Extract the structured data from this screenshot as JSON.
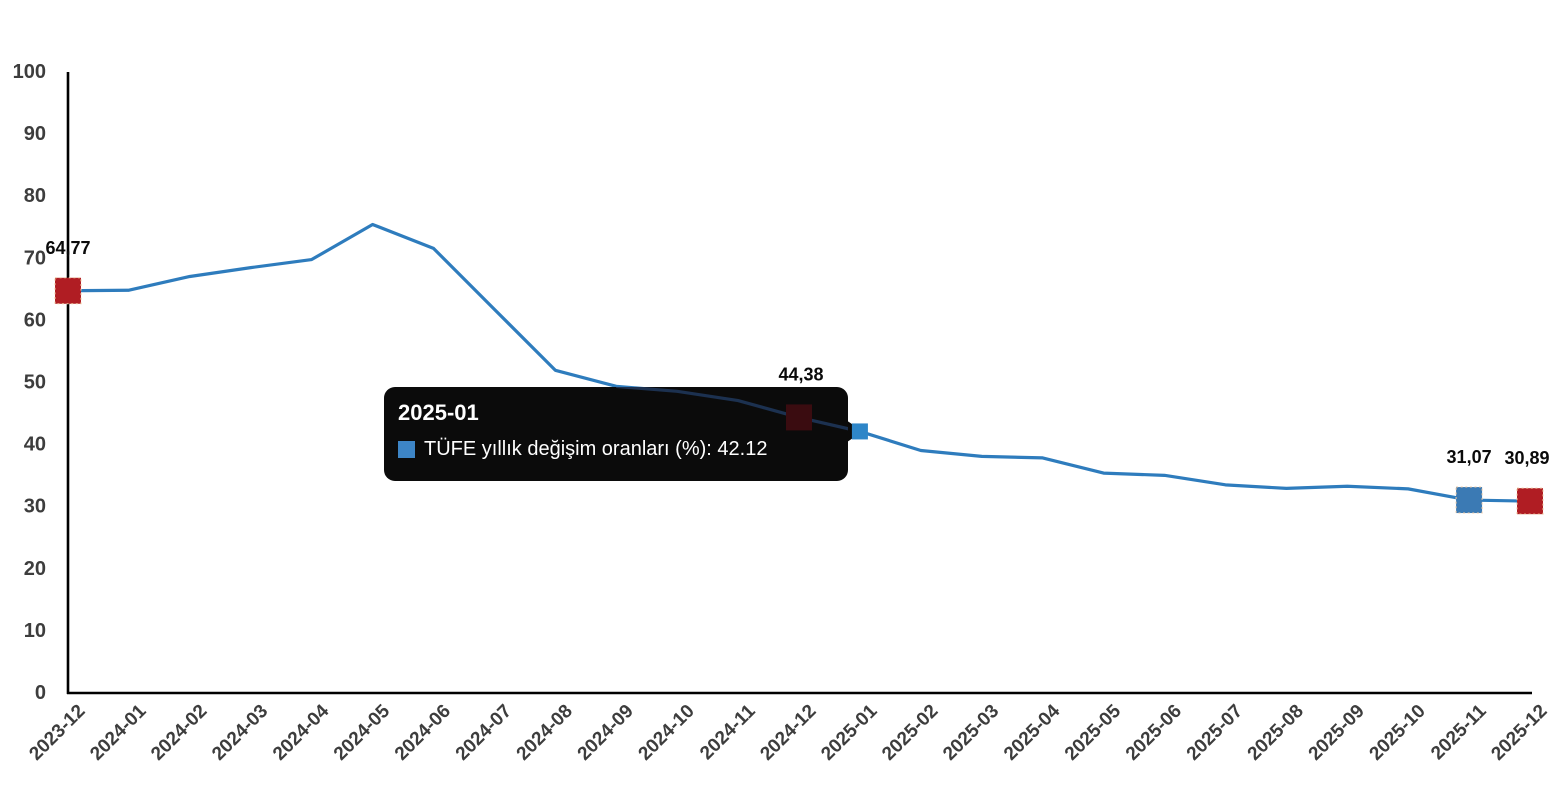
{
  "chart_data": {
    "type": "line",
    "title": "",
    "x": [
      "2023-12",
      "2024-01",
      "2024-02",
      "2024-03",
      "2024-04",
      "2024-05",
      "2024-06",
      "2024-07",
      "2024-08",
      "2024-09",
      "2024-10",
      "2024-11",
      "2024-12",
      "2025-01",
      "2025-02",
      "2025-03",
      "2025-04",
      "2025-05",
      "2025-06",
      "2025-07",
      "2025-08",
      "2025-09",
      "2025-10",
      "2025-11",
      "2025-12"
    ],
    "series": [
      {
        "name": "TÜFE yıllık değişim oranları (%)",
        "values": [
          64.77,
          64.86,
          67.07,
          68.5,
          69.8,
          75.45,
          71.6,
          61.78,
          51.97,
          49.38,
          48.58,
          47.09,
          44.38,
          42.12,
          39.05,
          38.1,
          37.86,
          35.41,
          35.05,
          33.52,
          32.95,
          33.29,
          32.87,
          31.07,
          30.89
        ]
      }
    ],
    "xlabel": "",
    "ylabel": "",
    "ylim": [
      0,
      100
    ],
    "y_ticks": [
      "0",
      "10",
      "20",
      "30",
      "40",
      "50",
      "60",
      "70",
      "80",
      "90",
      "100"
    ],
    "grid": false,
    "legend_position": "none",
    "line_color": "#2e7cbd",
    "axis_color": "#000000",
    "tick_label_color": "#3d3d3d"
  },
  "highlight_markers": [
    {
      "month": "2023-12",
      "value": 64.77,
      "label": "64,77",
      "color": "#b01d23",
      "size": 26,
      "hover": false,
      "label_dx": 0
    },
    {
      "month": "2024-12",
      "value": 44.38,
      "label": "44,38",
      "color": "#b01d23",
      "size": 26,
      "hover": false,
      "label_dx": 2
    },
    {
      "month": "2025-01",
      "value": 42.12,
      "label": "",
      "color": "#2e86c8",
      "size": 16,
      "hover": true,
      "label_dx": 0
    },
    {
      "month": "2025-11",
      "value": 31.07,
      "label": "31,07",
      "color": "#3b7ab4",
      "size": 26,
      "hover": false,
      "label_dx": 0
    },
    {
      "month": "2025-12",
      "value": 30.89,
      "label": "30,89",
      "color": "#b01d23",
      "size": 26,
      "hover": false,
      "label_dx": -3
    }
  ],
  "tooltip": {
    "title": "2025-01",
    "series_label": "TÜFE yıllık değişim oranları (%)",
    "value": "42.12",
    "text": "TÜFE yıllık değişim oranları (%): 42.12",
    "swatch_color": "#3d85c6",
    "bg_color": "#0b0b0b",
    "text_color": "#ffffff"
  }
}
